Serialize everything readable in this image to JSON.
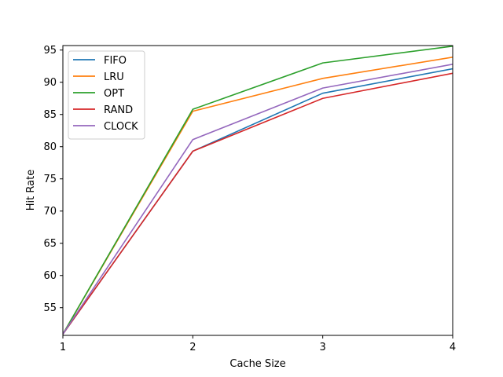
{
  "chart_data": {
    "type": "line",
    "title": "",
    "xlabel": "Cache Size",
    "ylabel": "Hit Rate",
    "x": [
      1,
      2,
      3,
      4
    ],
    "xlim": [
      1,
      4
    ],
    "ylim": [
      50.7,
      95.7
    ],
    "xticks": [
      "1",
      "2",
      "3",
      "4"
    ],
    "yticks": [
      "55",
      "60",
      "65",
      "70",
      "75",
      "80",
      "85",
      "90",
      "95"
    ],
    "grid": false,
    "legend_position": "upper-left",
    "series": [
      {
        "name": "FIFO",
        "color": "#1f77b4",
        "values": [
          50.9,
          79.3,
          88.3,
          92.1
        ]
      },
      {
        "name": "LRU",
        "color": "#ff7f0e",
        "values": [
          50.9,
          85.5,
          90.6,
          93.9
        ]
      },
      {
        "name": "OPT",
        "color": "#2ca02c",
        "values": [
          50.9,
          85.8,
          93.0,
          95.6
        ]
      },
      {
        "name": "RAND",
        "color": "#d62728",
        "values": [
          50.9,
          79.3,
          87.5,
          91.4
        ]
      },
      {
        "name": "CLOCK",
        "color": "#9467bd",
        "values": [
          50.9,
          81.1,
          89.1,
          92.8
        ]
      }
    ]
  }
}
